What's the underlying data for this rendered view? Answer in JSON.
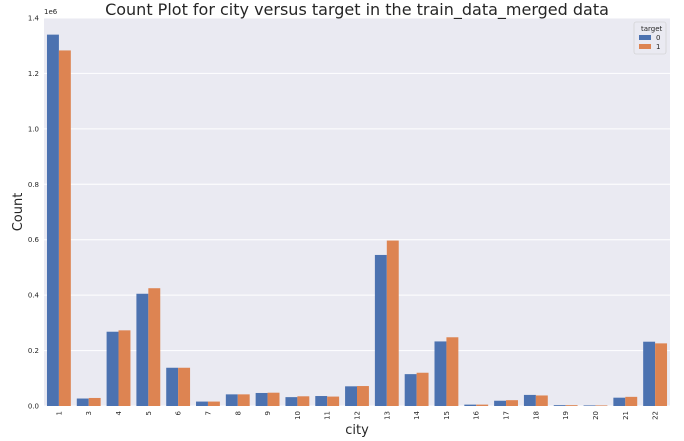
{
  "chart_data": {
    "type": "bar",
    "title": "Count Plot for city versus target in the train_data_merged data",
    "xlabel": "city",
    "ylabel": "Count",
    "y_multiplier_label": "1e6",
    "ylim": [
      0,
      1.4
    ],
    "yticks": [
      "0.0",
      "0.2",
      "0.4",
      "0.6",
      "0.8",
      "1.0",
      "1.2",
      "1.4"
    ],
    "grid": true,
    "legend_title": "target",
    "legend_position": "top-right",
    "categories": [
      "1",
      "3",
      "4",
      "5",
      "6",
      "7",
      "8",
      "9",
      "10",
      "11",
      "12",
      "13",
      "14",
      "15",
      "16",
      "17",
      "18",
      "19",
      "20",
      "21",
      "22"
    ],
    "series": [
      {
        "name": "0",
        "color": "#4c72b0",
        "values": [
          1.34,
          0.027,
          0.268,
          0.405,
          0.138,
          0.016,
          0.042,
          0.047,
          0.032,
          0.036,
          0.071,
          0.545,
          0.115,
          0.233,
          0.005,
          0.019,
          0.04,
          0.003,
          0.002,
          0.03,
          0.232
        ]
      },
      {
        "name": "1",
        "color": "#dd8452",
        "values": [
          1.283,
          0.029,
          0.273,
          0.425,
          0.138,
          0.016,
          0.042,
          0.048,
          0.035,
          0.034,
          0.072,
          0.597,
          0.12,
          0.248,
          0.005,
          0.021,
          0.038,
          0.003,
          0.002,
          0.033,
          0.226
        ]
      }
    ]
  }
}
